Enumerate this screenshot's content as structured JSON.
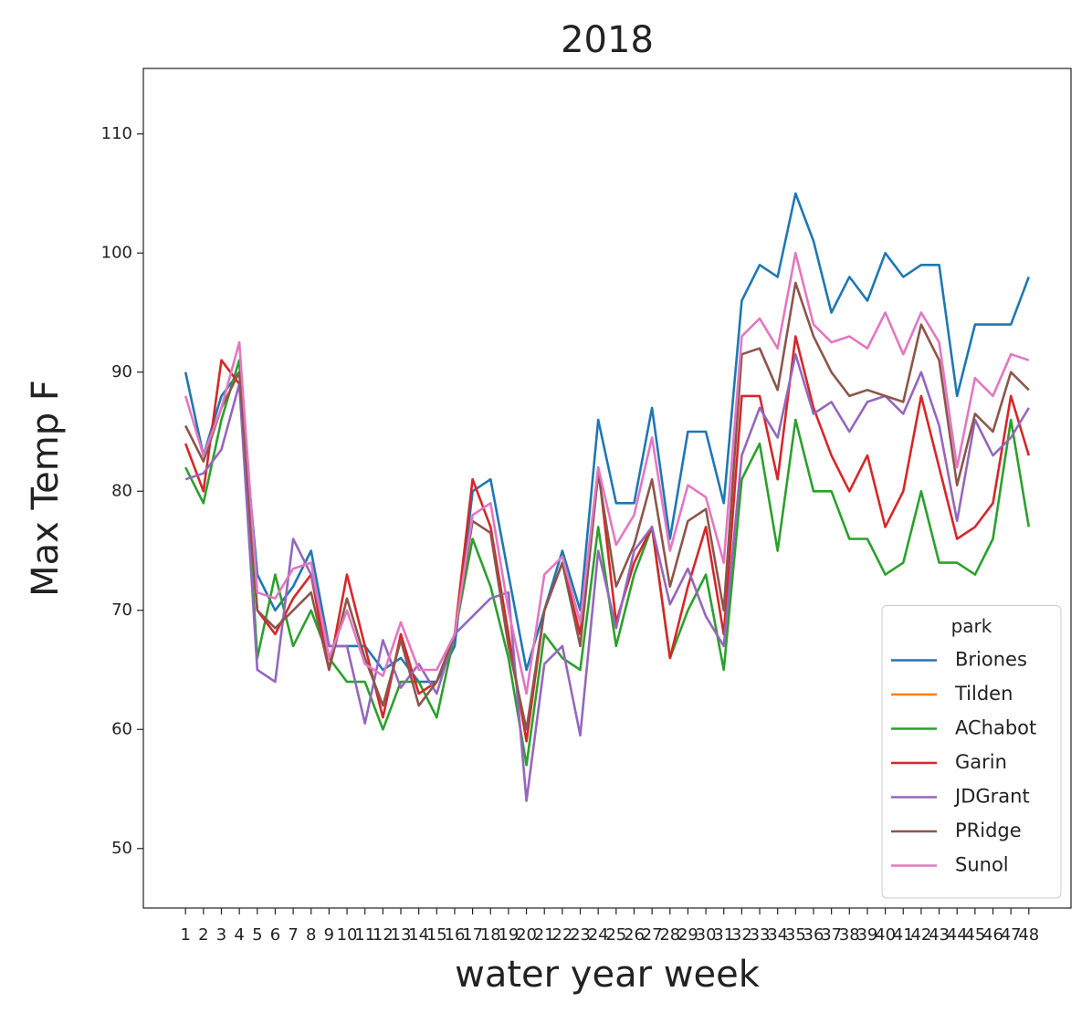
{
  "chart_data": {
    "type": "line",
    "title": "2018",
    "xlabel": "water year week",
    "ylabel": "Max Temp F",
    "x": [
      1,
      2,
      3,
      4,
      5,
      6,
      7,
      8,
      9,
      10,
      11,
      12,
      13,
      14,
      15,
      16,
      17,
      18,
      19,
      20,
      21,
      22,
      23,
      24,
      25,
      26,
      27,
      28,
      29,
      30,
      31,
      32,
      33,
      34,
      35,
      36,
      37,
      38,
      39,
      40,
      41,
      42,
      43,
      44,
      45,
      46,
      47,
      48
    ],
    "xlim": [
      -1.35,
      50.35
    ],
    "xticks": [
      1,
      2,
      3,
      4,
      5,
      6,
      7,
      8,
      9,
      10,
      11,
      12,
      13,
      14,
      15,
      16,
      17,
      18,
      19,
      20,
      21,
      22,
      23,
      24,
      25,
      26,
      27,
      28,
      29,
      30,
      31,
      32,
      33,
      34,
      35,
      36,
      37,
      38,
      39,
      40,
      41,
      42,
      43,
      44,
      45,
      46,
      47,
      48
    ],
    "ylim": [
      45,
      115.5
    ],
    "yticks": [
      50,
      60,
      70,
      80,
      90,
      100,
      110
    ],
    "grid": false,
    "legend_title": "park",
    "legend_position": "lower right",
    "series": [
      {
        "name": "Briones",
        "color": "#1f77b4",
        "values": [
          90,
          83,
          88,
          90,
          73,
          70,
          72,
          75,
          67,
          67,
          67,
          65,
          66,
          64,
          64,
          67,
          80,
          81,
          73,
          65,
          70,
          75,
          70,
          86,
          79,
          79,
          87,
          76,
          85,
          85,
          79,
          96,
          99,
          98,
          105,
          101,
          95,
          98,
          96,
          100,
          98,
          99,
          99,
          88,
          94,
          94,
          94,
          98
        ]
      },
      {
        "name": "Tilden",
        "color": "#ff7f0e",
        "values": [
          null,
          null,
          null,
          null,
          null,
          null,
          null,
          null,
          null,
          null,
          null,
          null,
          null,
          null,
          null,
          null,
          null,
          null,
          null,
          null,
          null,
          null,
          null,
          null,
          null,
          null,
          null,
          null,
          null,
          null,
          null,
          null,
          null,
          null,
          null,
          null,
          null,
          null,
          null,
          null,
          null,
          null,
          null,
          null,
          null,
          null,
          null,
          null
        ]
      },
      {
        "name": "AChabot",
        "color": "#2ca02c",
        "values": [
          82,
          79,
          86,
          91,
          66,
          73,
          67,
          70,
          66,
          64,
          64,
          60,
          64,
          64,
          61,
          68,
          76,
          72,
          66,
          57,
          68,
          66,
          65,
          77,
          67,
          73,
          77,
          66,
          70,
          73,
          65,
          81,
          84,
          75,
          86,
          80,
          80,
          76,
          76,
          73,
          74,
          80,
          74,
          74,
          73,
          76,
          86,
          77
        ]
      },
      {
        "name": "Garin",
        "color": "#d62728",
        "values": [
          84,
          80,
          91,
          89,
          70,
          68,
          71,
          73,
          65,
          73,
          67,
          61,
          68,
          63,
          64,
          68,
          81,
          77,
          68,
          59,
          70,
          74,
          68,
          82,
          69,
          74,
          77,
          66,
          72,
          77,
          68,
          88,
          88,
          81,
          93,
          87,
          83,
          80,
          83,
          77,
          80,
          88,
          82,
          76,
          77,
          79,
          88,
          83
        ]
      },
      {
        "name": "JDGrant",
        "color": "#9467bd",
        "values": [
          81,
          81.5,
          83.5,
          89,
          65,
          64,
          76,
          73,
          67,
          67,
          60.5,
          67.5,
          63.5,
          65.5,
          63,
          68,
          69.5,
          71,
          71.5,
          54,
          65.5,
          67,
          59.5,
          75,
          68.5,
          75,
          77,
          70.5,
          73.5,
          69.5,
          67,
          83,
          87,
          84.5,
          91.5,
          86.5,
          87.5,
          85,
          87.5,
          88,
          86.5,
          90,
          85.5,
          77.5,
          86,
          83,
          84.5,
          87
        ]
      },
      {
        "name": "PRidge",
        "color": "#8c564b",
        "values": [
          85.5,
          82.5,
          87,
          90,
          70,
          68.5,
          70,
          71.5,
          65,
          71,
          66,
          62,
          67.5,
          62,
          64,
          68,
          77.5,
          76.5,
          67,
          60,
          70,
          74,
          67,
          81.5,
          72,
          75.5,
          81,
          72,
          77.5,
          78.5,
          70,
          91.5,
          92,
          88.5,
          97.5,
          93,
          90,
          88,
          88.5,
          88,
          87.5,
          94,
          91,
          80.5,
          86.5,
          85,
          90,
          88.5
        ]
      },
      {
        "name": "Sunol",
        "color": "#e377c2",
        "values": [
          88,
          83,
          87,
          92.5,
          71.5,
          71,
          73.5,
          74,
          66,
          70,
          65.5,
          64.5,
          69,
          65,
          65,
          68,
          78,
          79,
          70,
          63,
          73,
          74.5,
          69,
          82,
          75.5,
          78,
          84.5,
          75,
          80.5,
          79.5,
          74,
          93,
          94.5,
          92,
          100,
          94,
          92.5,
          93,
          92,
          95,
          91.5,
          95,
          92.5,
          82,
          89.5,
          88,
          91.5,
          91
        ]
      }
    ]
  }
}
